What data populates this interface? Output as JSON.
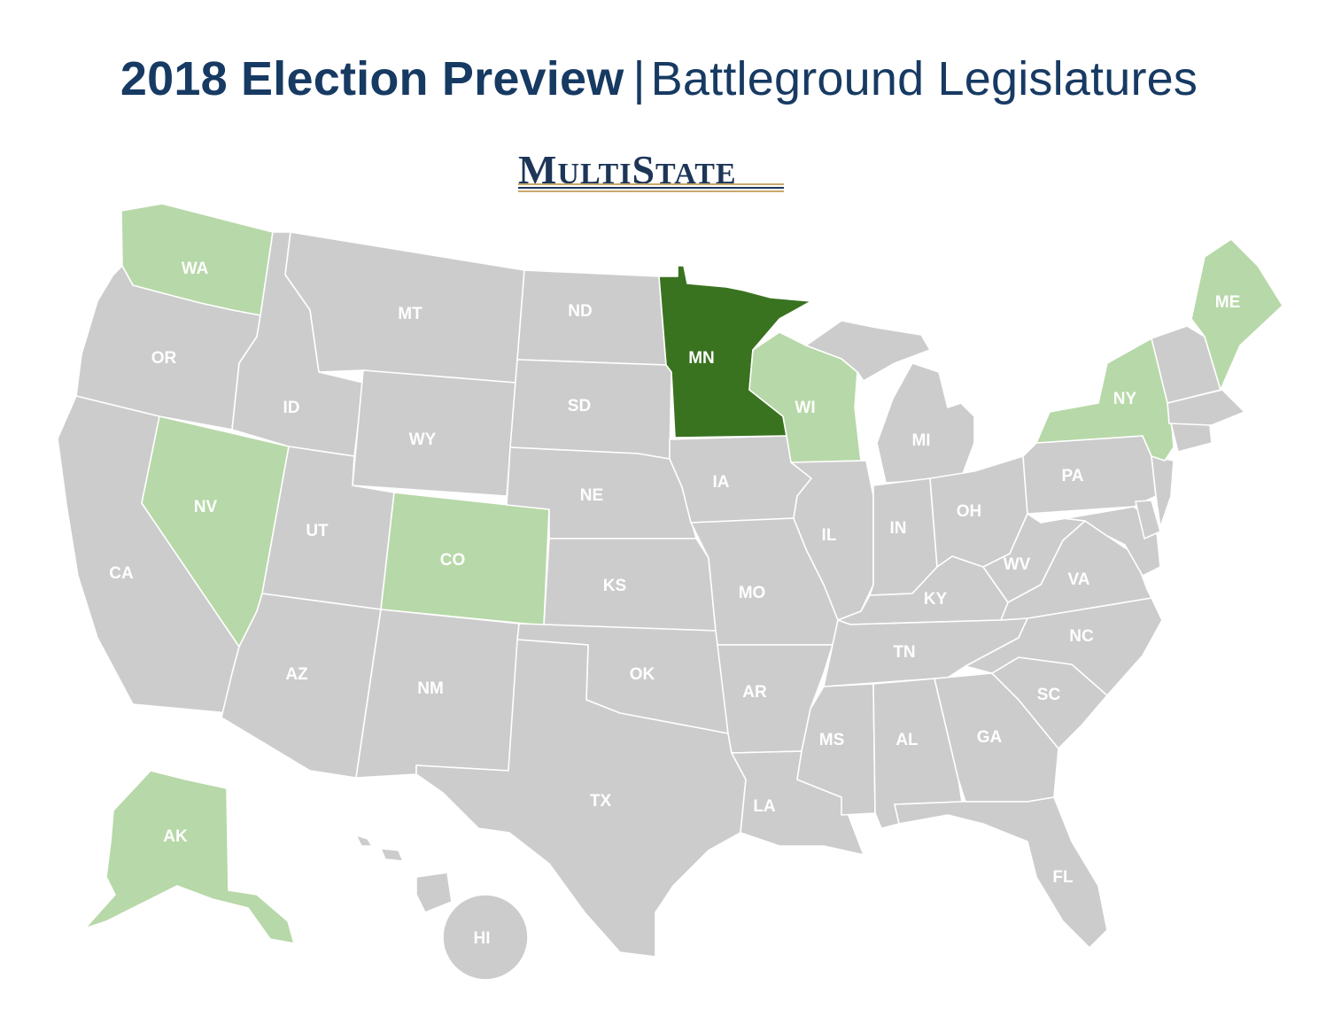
{
  "header": {
    "title_bold": "2018 Election Preview",
    "separator": "|",
    "title_light": "Battleground Legislatures"
  },
  "logo": {
    "text_big_1": "M",
    "text_small_1": "ULTI",
    "text_big_2": "S",
    "text_small_2": "TATE",
    "colors": {
      "text": "#1d3557",
      "line_gold": "#c9a96b",
      "line_navy": "#1d3557"
    }
  },
  "legend_colors": {
    "default": "#cccccc",
    "battleground": "#b7d8a8",
    "highlight": "#3a7320"
  },
  "states": [
    {
      "abbr": "WA",
      "status": "battleground"
    },
    {
      "abbr": "OR",
      "status": "default"
    },
    {
      "abbr": "CA",
      "status": "default"
    },
    {
      "abbr": "NV",
      "status": "battleground"
    },
    {
      "abbr": "ID",
      "status": "default"
    },
    {
      "abbr": "MT",
      "status": "default"
    },
    {
      "abbr": "WY",
      "status": "default"
    },
    {
      "abbr": "UT",
      "status": "default"
    },
    {
      "abbr": "AZ",
      "status": "default"
    },
    {
      "abbr": "CO",
      "status": "battleground"
    },
    {
      "abbr": "NM",
      "status": "default"
    },
    {
      "abbr": "ND",
      "status": "default"
    },
    {
      "abbr": "SD",
      "status": "default"
    },
    {
      "abbr": "NE",
      "status": "default"
    },
    {
      "abbr": "KS",
      "status": "default"
    },
    {
      "abbr": "OK",
      "status": "default"
    },
    {
      "abbr": "TX",
      "status": "default"
    },
    {
      "abbr": "MN",
      "status": "highlight"
    },
    {
      "abbr": "IA",
      "status": "default"
    },
    {
      "abbr": "MO",
      "status": "default"
    },
    {
      "abbr": "AR",
      "status": "default"
    },
    {
      "abbr": "LA",
      "status": "default"
    },
    {
      "abbr": "WI",
      "status": "battleground"
    },
    {
      "abbr": "IL",
      "status": "default"
    },
    {
      "abbr": "MI",
      "status": "default"
    },
    {
      "abbr": "IN",
      "status": "default"
    },
    {
      "abbr": "OH",
      "status": "default"
    },
    {
      "abbr": "KY",
      "status": "default"
    },
    {
      "abbr": "TN",
      "status": "default"
    },
    {
      "abbr": "MS",
      "status": "default"
    },
    {
      "abbr": "AL",
      "status": "default"
    },
    {
      "abbr": "GA",
      "status": "default"
    },
    {
      "abbr": "FL",
      "status": "default"
    },
    {
      "abbr": "SC",
      "status": "default"
    },
    {
      "abbr": "NC",
      "status": "default"
    },
    {
      "abbr": "VA",
      "status": "default"
    },
    {
      "abbr": "WV",
      "status": "default"
    },
    {
      "abbr": "PA",
      "status": "default"
    },
    {
      "abbr": "NY",
      "status": "battleground"
    },
    {
      "abbr": "ME",
      "status": "battleground"
    },
    {
      "abbr": "AK",
      "status": "battleground"
    },
    {
      "abbr": "HI",
      "status": "default"
    }
  ]
}
